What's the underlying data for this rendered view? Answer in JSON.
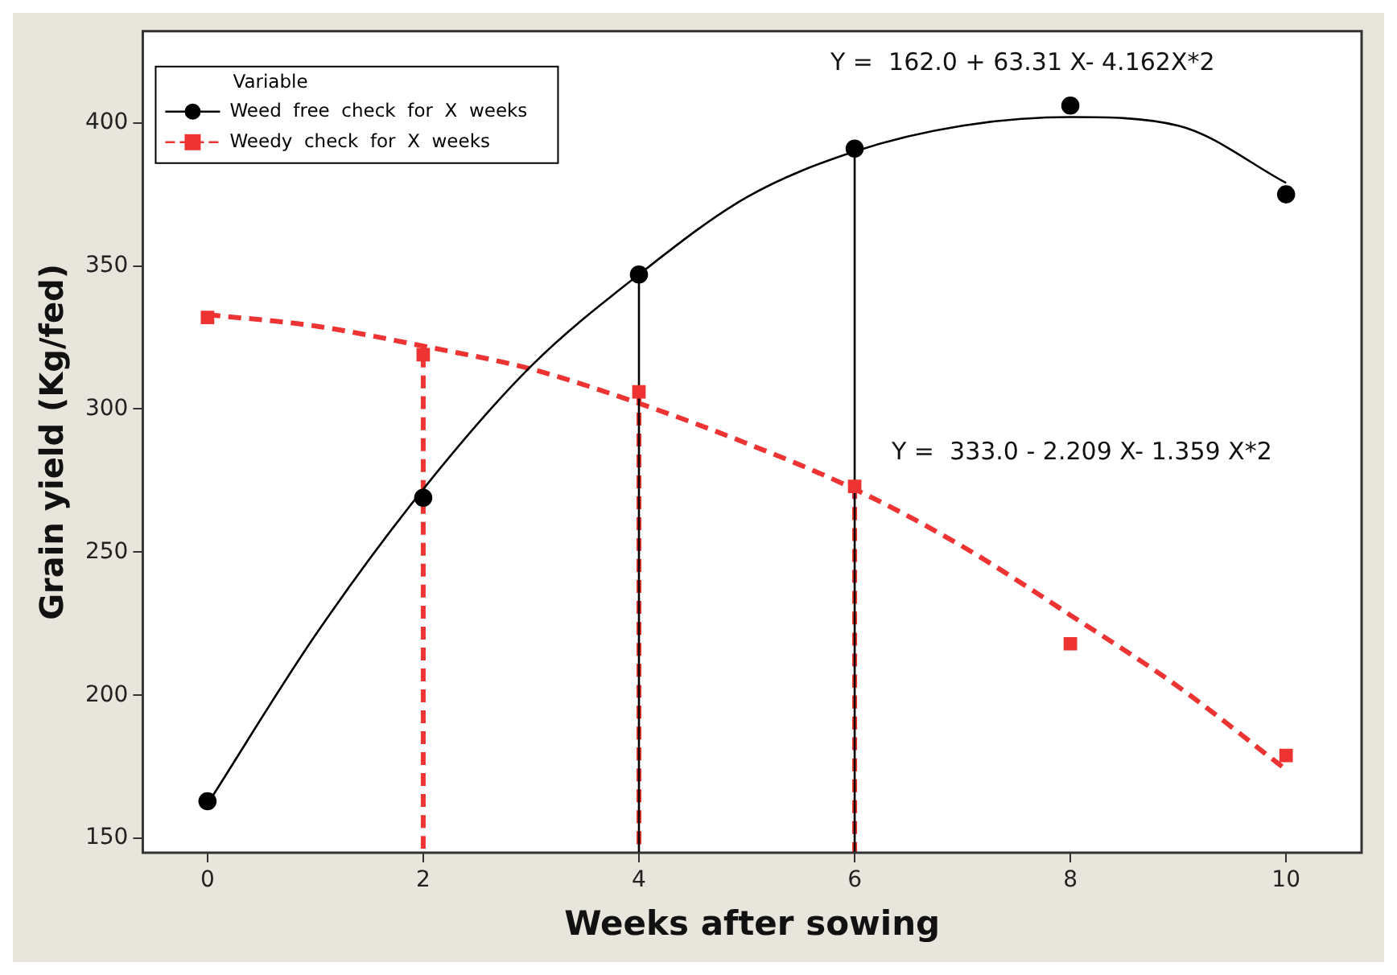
{
  "chart_data": {
    "type": "scatter",
    "xlabel": "Weeks after sowing",
    "ylabel": "Grain yield (Kg/fed)",
    "legend_title": "Variable",
    "legend": "top left",
    "grid": false,
    "xlim": [
      -0.6,
      10.7
    ],
    "xticks": [
      0,
      2,
      4,
      6,
      8,
      10
    ],
    "ylim": [
      145,
      432
    ],
    "yticks": [
      150,
      200,
      250,
      300,
      350,
      400
    ],
    "annotations": [
      "Y =  162.0 + 63.31 X- 4.162X*2",
      "Y =  333.0 - 2.209 X- 1.359 X*2"
    ],
    "series": [
      {
        "name": "Weed  free  check  for  X  weeks",
        "marker": "circle",
        "color": "#000000",
        "x": [
          0,
          2,
          4,
          6,
          8,
          10
        ],
        "values": [
          163,
          269,
          347,
          391,
          406,
          375
        ]
      },
      {
        "name": "Weedy  check  for  X  weeks",
        "marker": "square",
        "color": "#ee3333",
        "x": [
          0,
          2,
          4,
          6,
          8,
          10
        ],
        "values": [
          332,
          319,
          306,
          273,
          218,
          179
        ]
      },
      {
        "type": "line",
        "line_style": "solid",
        "marker": "none",
        "color": "#000000",
        "x": [
          0,
          1,
          2,
          3,
          4,
          5,
          6,
          7,
          8,
          9,
          10
        ],
        "values": [
          162,
          221,
          272,
          315,
          347,
          374,
          390,
          399,
          402,
          399,
          379
        ]
      },
      {
        "type": "line",
        "line_style": "dashed",
        "marker": "none",
        "color": "#ee3333",
        "x": [
          0,
          1,
          2,
          3,
          4,
          5,
          6,
          7,
          8,
          9,
          10
        ],
        "values": [
          333,
          329,
          322,
          314,
          302,
          288,
          272,
          252,
          228,
          203,
          174
        ]
      },
      {
        "type": "line",
        "line_style": "dashed",
        "marker": "none",
        "color": "#ee3333",
        "x": [
          2,
          2
        ],
        "values": [
          319,
          145
        ]
      },
      {
        "type": "line",
        "line_style": "solid",
        "marker": "none",
        "color": "#000000",
        "x": [
          4,
          4
        ],
        "values": [
          347,
          145
        ]
      },
      {
        "type": "line",
        "line_style": "dashed",
        "marker": "none",
        "color": "#ee3333",
        "x": [
          4,
          4
        ],
        "values": [
          306,
          145
        ]
      },
      {
        "type": "line",
        "line_style": "solid",
        "marker": "none",
        "color": "#000000",
        "x": [
          6,
          6
        ],
        "values": [
          391,
          145
        ]
      },
      {
        "type": "line",
        "line_style": "dashed",
        "marker": "none",
        "color": "#ee3333",
        "x": [
          6,
          6
        ],
        "values": [
          273,
          145
        ]
      }
    ]
  }
}
